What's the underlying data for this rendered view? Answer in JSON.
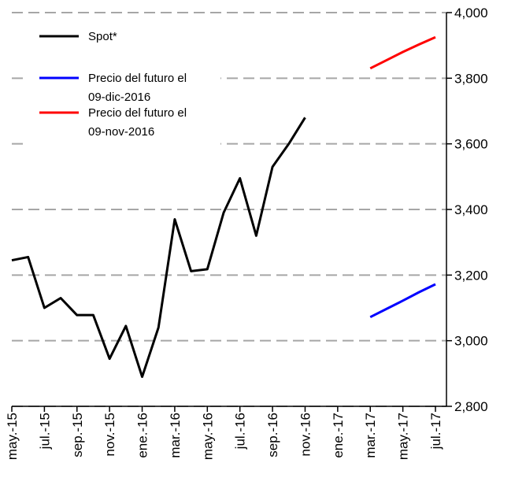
{
  "chart_data": {
    "type": "line",
    "categories": [
      "may.-15",
      null,
      "jul.-15",
      null,
      "sep.-15",
      null,
      "nov.-15",
      null,
      "ene.-16",
      null,
      "mar.-16",
      null,
      "may.-16",
      null,
      "jul.-16",
      null,
      "sep.-16",
      null,
      "nov.-16",
      null,
      "ene.-17",
      null,
      "mar.-17",
      null,
      "may.-17",
      null,
      "jul.-17"
    ],
    "series": [
      {
        "name": "Spot*",
        "color": "#000000",
        "values": [
          3245,
          3255,
          3100,
          3130,
          3078,
          3078,
          2945,
          3045,
          2890,
          3040,
          3370,
          3212,
          3218,
          3390,
          3495,
          3320,
          3530,
          3600,
          3680,
          null,
          null,
          null,
          null,
          null,
          null,
          null,
          null
        ]
      },
      {
        "name": "Precio del futuro el\n09-dic-2016",
        "color": "#0000ff",
        "values": [
          null,
          null,
          null,
          null,
          null,
          null,
          null,
          null,
          null,
          null,
          null,
          null,
          null,
          null,
          null,
          null,
          null,
          null,
          null,
          null,
          null,
          null,
          3072,
          3097,
          3122,
          3148,
          3172
        ]
      },
      {
        "name": "Precio del futuro el\n09-nov-2016",
        "color": "#ff0000",
        "values": [
          null,
          null,
          null,
          null,
          null,
          null,
          null,
          null,
          null,
          null,
          null,
          null,
          null,
          null,
          null,
          null,
          null,
          null,
          null,
          null,
          null,
          null,
          3830,
          3855,
          3880,
          3903,
          3925
        ]
      }
    ],
    "ylim": [
      2800,
      4000
    ],
    "yticks": [
      {
        "value": 2800,
        "label": "2,800"
      },
      {
        "value": 3000,
        "label": "3,000"
      },
      {
        "value": 3200,
        "label": "3,200"
      },
      {
        "value": 3400,
        "label": "3,400"
      },
      {
        "value": 3600,
        "label": "3,600"
      },
      {
        "value": 3800,
        "label": "3,800"
      },
      {
        "value": 4000,
        "label": "4,000"
      }
    ],
    "grid": true,
    "legend": "upper left"
  }
}
